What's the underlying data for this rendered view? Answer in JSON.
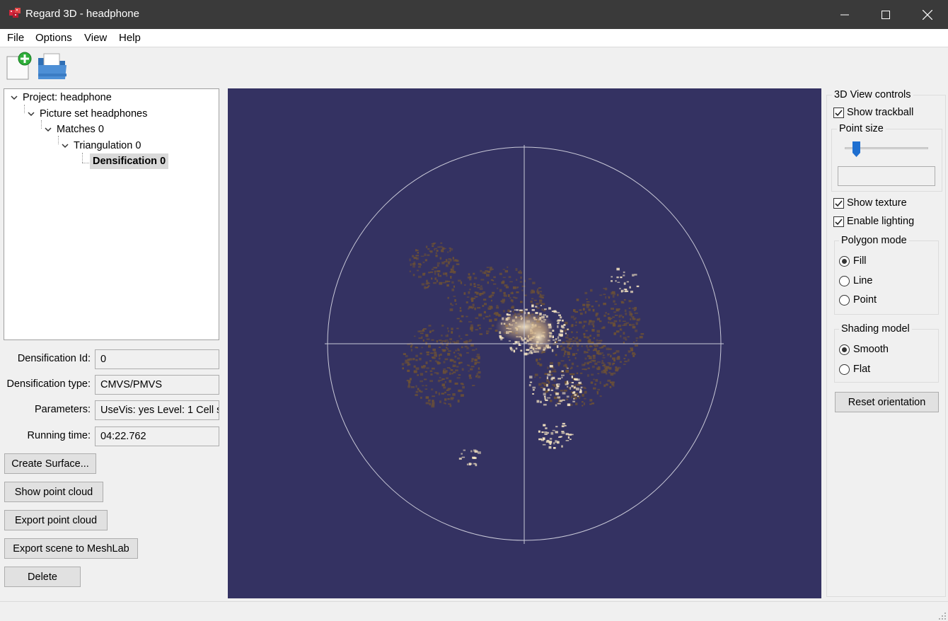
{
  "window": {
    "title": "Regard 3D - headphone",
    "minimize_icon": "minimize-icon",
    "maximize_icon": "maximize-icon",
    "close_icon": "close-icon"
  },
  "menu": [
    "File",
    "Options",
    "View",
    "Help"
  ],
  "toolbar": {
    "new_project_icon": "new-document-plus-icon",
    "open_project_icon": "open-folder-icon"
  },
  "tree": {
    "project": "Project: headphone",
    "picture_set": "Picture set headphones",
    "matches": "Matches 0",
    "triangulation": "Triangulation 0",
    "densification": "Densification 0"
  },
  "properties": [
    {
      "label": "Densification Id:",
      "value": "0"
    },
    {
      "label": "Densification type:",
      "value": "CMVS/PMVS"
    },
    {
      "label": "Parameters:",
      "value": "UseVis: yes Level: 1 Cell s"
    },
    {
      "label": "Running time:",
      "value": "04:22.762"
    }
  ],
  "actions": {
    "create_surface": "Create Surface...",
    "show_point_cloud": "Show point cloud",
    "export_point_cloud": "Export point cloud",
    "export_meshlab": "Export scene to MeshLab",
    "delete": "Delete"
  },
  "view_controls": {
    "group_title": "3D View controls",
    "show_trackball": {
      "label": "Show trackball",
      "checked": true
    },
    "point_size": {
      "label": "Point size",
      "value": 0.13,
      "text": ""
    },
    "show_texture": {
      "label": "Show texture",
      "checked": true
    },
    "enable_lighting": {
      "label": "Enable lighting",
      "checked": true
    },
    "polygon_mode": {
      "title": "Polygon mode",
      "options": [
        "Fill",
        "Line",
        "Point"
      ],
      "selected": "Fill"
    },
    "shading_model": {
      "title": "Shading model",
      "options": [
        "Smooth",
        "Flat"
      ],
      "selected": "Smooth"
    },
    "reset_orientation": "Reset orientation"
  },
  "colors": {
    "titlebar": "#3a3a3a",
    "viewport_bg": "#343262",
    "slider_thumb": "#1f6fd0",
    "point_cloud_dark": "#6b5036",
    "point_cloud_light": "#f3e2c0"
  }
}
